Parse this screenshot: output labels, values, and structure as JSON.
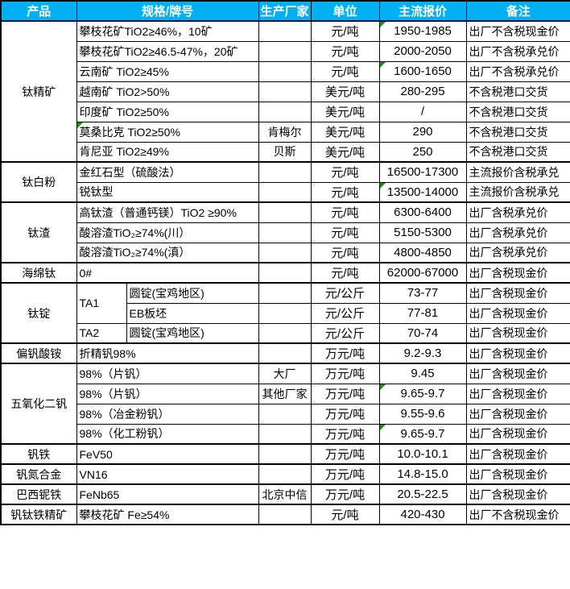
{
  "colors": {
    "header_bg": "#00B0F0",
    "header_text": "#FFFFFF",
    "grid": "#000000",
    "error_marker_green": "#1E8F1E"
  },
  "table": {
    "header": [
      "产品",
      "规格/牌号",
      "生产厂家",
      "单位",
      "主流报价",
      "备注"
    ],
    "rows": [
      {
        "thick": false,
        "cells": [
          {
            "n": "product",
            "t": "钛精矿",
            "rs": 7,
            "cls": "center"
          },
          {
            "n": "spec",
            "t": "攀枝花矿TiO2≥46%，10矿",
            "cs": 2,
            "cls": "left"
          },
          {
            "n": "maker",
            "t": "",
            "cls": "center"
          },
          {
            "n": "unit",
            "t": "元/吨",
            "cls": "center"
          },
          {
            "n": "price",
            "t": "1950-1985",
            "cls": "center",
            "m": true
          },
          {
            "n": "note",
            "t": "出厂不含税现金价",
            "cls": "left"
          }
        ]
      },
      {
        "thick": false,
        "cells": [
          {
            "n": "spec",
            "t": "攀枝花矿TiO2≥46.5-47%，20矿",
            "cs": 2,
            "cls": "left"
          },
          {
            "n": "maker",
            "t": "",
            "cls": "center"
          },
          {
            "n": "unit",
            "t": "元/吨",
            "cls": "center"
          },
          {
            "n": "price",
            "t": "2000-2050",
            "cls": "center"
          },
          {
            "n": "note",
            "t": "出厂不含税承兑价",
            "cls": "left"
          }
        ]
      },
      {
        "thick": false,
        "cells": [
          {
            "n": "spec",
            "t": "云南矿 TiO2≥45%",
            "cs": 2,
            "cls": "left"
          },
          {
            "n": "maker",
            "t": "",
            "cls": "center"
          },
          {
            "n": "unit",
            "t": "元/吨",
            "cls": "center"
          },
          {
            "n": "price",
            "t": "1600-1650",
            "cls": "center",
            "m": true
          },
          {
            "n": "note",
            "t": "出厂不含税承兑价",
            "cls": "left"
          }
        ]
      },
      {
        "thick": false,
        "cells": [
          {
            "n": "spec",
            "t": "越南矿 TiO2>50%",
            "cs": 2,
            "cls": "left"
          },
          {
            "n": "maker",
            "t": "",
            "cls": "center"
          },
          {
            "n": "unit",
            "t": "美元/吨",
            "cls": "center"
          },
          {
            "n": "price",
            "t": "280-295",
            "cls": "center"
          },
          {
            "n": "note",
            "t": "不含税港口交货",
            "cls": "left"
          }
        ]
      },
      {
        "thick": false,
        "cells": [
          {
            "n": "spec",
            "t": "印度矿 TiO2≥50%",
            "cs": 2,
            "cls": "left"
          },
          {
            "n": "maker",
            "t": "",
            "cls": "center"
          },
          {
            "n": "unit",
            "t": "美元/吨",
            "cls": "center"
          },
          {
            "n": "price",
            "t": "/",
            "cls": "center"
          },
          {
            "n": "note",
            "t": "不含税港口交货",
            "cls": "left"
          }
        ]
      },
      {
        "thick": false,
        "cells": [
          {
            "n": "spec",
            "t": "莫桑比克 TiO2≥50%",
            "cs": 2,
            "cls": "left",
            "m": true
          },
          {
            "n": "maker",
            "t": "肯梅尔",
            "cls": "center"
          },
          {
            "n": "unit",
            "t": "美元/吨",
            "cls": "center"
          },
          {
            "n": "price",
            "t": "290",
            "cls": "center"
          },
          {
            "n": "note",
            "t": "不含税港口交货",
            "cls": "left"
          }
        ]
      },
      {
        "thick": false,
        "cells": [
          {
            "n": "spec",
            "t": "肯尼亚 TiO2≥49%",
            "cs": 2,
            "cls": "left"
          },
          {
            "n": "maker",
            "t": "贝斯",
            "cls": "center"
          },
          {
            "n": "unit",
            "t": "美元/吨",
            "cls": "center"
          },
          {
            "n": "price",
            "t": "250",
            "cls": "center"
          },
          {
            "n": "note",
            "t": "不含税港口交货",
            "cls": "left"
          }
        ]
      },
      {
        "thick": true,
        "cells": [
          {
            "n": "product",
            "t": "钛白粉",
            "rs": 2,
            "cls": "center"
          },
          {
            "n": "spec",
            "t": "金红石型（硫酸法）",
            "cs": 2,
            "cls": "left"
          },
          {
            "n": "maker",
            "t": "",
            "cls": "center"
          },
          {
            "n": "unit",
            "t": "元/吨",
            "cls": "center"
          },
          {
            "n": "price",
            "t": "16500-17300",
            "cls": "center"
          },
          {
            "n": "note",
            "t": "主流报价含税承兑",
            "cls": "left"
          }
        ]
      },
      {
        "thick": false,
        "cells": [
          {
            "n": "spec",
            "t": "锐钛型",
            "cs": 2,
            "cls": "left"
          },
          {
            "n": "maker",
            "t": "",
            "cls": "center"
          },
          {
            "n": "unit",
            "t": "元/吨",
            "cls": "center"
          },
          {
            "n": "price",
            "t": "13500-14000",
            "cls": "center",
            "m": true
          },
          {
            "n": "note",
            "t": "主流报价含税承兑",
            "cls": "left"
          }
        ]
      },
      {
        "thick": true,
        "cells": [
          {
            "n": "product",
            "t": "钛渣",
            "rs": 3,
            "cls": "center"
          },
          {
            "n": "spec",
            "t": "高钛渣（普通钙镁）TiO2 ≥90%",
            "cs": 2,
            "cls": "left"
          },
          {
            "n": "maker",
            "t": "",
            "cls": "center"
          },
          {
            "n": "unit",
            "t": "元/吨",
            "cls": "center"
          },
          {
            "n": "price",
            "t": "6300-6400",
            "cls": "center"
          },
          {
            "n": "note",
            "t": "出厂含税承兑价",
            "cls": "left"
          }
        ]
      },
      {
        "thick": false,
        "cells": [
          {
            "n": "spec",
            "t": "酸溶渣TiO₂≥74%(川）",
            "cs": 2,
            "cls": "left"
          },
          {
            "n": "maker",
            "t": "",
            "cls": "center"
          },
          {
            "n": "unit",
            "t": "元/吨",
            "cls": "center"
          },
          {
            "n": "price",
            "t": "5150-5300",
            "cls": "center"
          },
          {
            "n": "note",
            "t": "出厂含税承兑价",
            "cls": "left"
          }
        ]
      },
      {
        "thick": false,
        "cells": [
          {
            "n": "spec",
            "t": "酸溶渣TiO₂≥74%(滇）",
            "cs": 2,
            "cls": "left"
          },
          {
            "n": "maker",
            "t": "",
            "cls": "center"
          },
          {
            "n": "unit",
            "t": "元/吨",
            "cls": "center"
          },
          {
            "n": "price",
            "t": "4800-4850",
            "cls": "center"
          },
          {
            "n": "note",
            "t": "出厂含税承兑价",
            "cls": "left"
          }
        ]
      },
      {
        "thick": true,
        "cells": [
          {
            "n": "product",
            "t": "海绵钛",
            "cls": "center"
          },
          {
            "n": "spec",
            "t": "0#",
            "cs": 2,
            "cls": "left"
          },
          {
            "n": "maker",
            "t": "",
            "cls": "center"
          },
          {
            "n": "unit",
            "t": "元/吨",
            "cls": "center"
          },
          {
            "n": "price",
            "t": "62000-67000",
            "cls": "center"
          },
          {
            "n": "note",
            "t": "出厂含税现金价",
            "cls": "left"
          }
        ]
      },
      {
        "thick": true,
        "cells": [
          {
            "n": "product",
            "t": "钛锭",
            "rs": 3,
            "cls": "center"
          },
          {
            "n": "grade",
            "t": "TA1",
            "rs": 2,
            "cls": "left"
          },
          {
            "n": "spec",
            "t": "圆锭(宝鸡地区)",
            "cls": "left"
          },
          {
            "n": "maker",
            "t": "",
            "cls": "center"
          },
          {
            "n": "unit",
            "t": "元/公斤",
            "cls": "center"
          },
          {
            "n": "price",
            "t": "73-77",
            "cls": "center"
          },
          {
            "n": "note",
            "t": "出厂含税现金价",
            "cls": "left"
          }
        ]
      },
      {
        "thick": false,
        "cells": [
          {
            "n": "spec",
            "t": "EB板坯",
            "cls": "left"
          },
          {
            "n": "maker",
            "t": "",
            "cls": "center"
          },
          {
            "n": "unit",
            "t": "元/公斤",
            "cls": "center"
          },
          {
            "n": "price",
            "t": "77-81",
            "cls": "center"
          },
          {
            "n": "note",
            "t": "出厂含税现金价",
            "cls": "left"
          }
        ]
      },
      {
        "thick": false,
        "cells": [
          {
            "n": "grade",
            "t": "TA2",
            "cls": "left"
          },
          {
            "n": "spec",
            "t": "圆锭(宝鸡地区)",
            "cls": "left"
          },
          {
            "n": "maker",
            "t": "",
            "cls": "center"
          },
          {
            "n": "unit",
            "t": "元/公斤",
            "cls": "center"
          },
          {
            "n": "price",
            "t": "70-74",
            "cls": "center"
          },
          {
            "n": "note",
            "t": "出厂含税现金价",
            "cls": "left"
          }
        ]
      },
      {
        "thick": true,
        "cells": [
          {
            "n": "product",
            "t": "偏钒酸铵",
            "cls": "center"
          },
          {
            "n": "spec",
            "t": "折精钒98%",
            "cs": 2,
            "cls": "left"
          },
          {
            "n": "maker",
            "t": "",
            "cls": "center"
          },
          {
            "n": "unit",
            "t": "万元/吨",
            "cls": "center"
          },
          {
            "n": "price",
            "t": "9.2-9.3",
            "cls": "center"
          },
          {
            "n": "note",
            "t": "出厂含税现金价",
            "cls": "left"
          }
        ]
      },
      {
        "thick": true,
        "cells": [
          {
            "n": "product",
            "t": "五氧化二钒",
            "rs": 4,
            "cls": "center"
          },
          {
            "n": "spec",
            "t": "98%（片钒）",
            "cs": 2,
            "cls": "left"
          },
          {
            "n": "maker",
            "t": "大厂",
            "cls": "center"
          },
          {
            "n": "unit",
            "t": "万元/吨",
            "cls": "center"
          },
          {
            "n": "price",
            "t": "9.45",
            "cls": "center"
          },
          {
            "n": "note",
            "t": "出厂含税现金价",
            "cls": "left"
          }
        ]
      },
      {
        "thick": false,
        "cells": [
          {
            "n": "spec",
            "t": "98%（片钒）",
            "cs": 2,
            "cls": "left"
          },
          {
            "n": "maker",
            "t": "其他厂家",
            "cls": "center"
          },
          {
            "n": "unit",
            "t": "万元/吨",
            "cls": "center"
          },
          {
            "n": "price",
            "t": "9.65-9.7",
            "cls": "center",
            "m": true
          },
          {
            "n": "note",
            "t": "出厂含税现金价",
            "cls": "left"
          }
        ]
      },
      {
        "thick": false,
        "cells": [
          {
            "n": "spec",
            "t": "98%（冶金粉钒）",
            "cs": 2,
            "cls": "left"
          },
          {
            "n": "maker",
            "t": "",
            "cls": "center"
          },
          {
            "n": "unit",
            "t": "万元/吨",
            "cls": "center"
          },
          {
            "n": "price",
            "t": "9.55-9.6",
            "cls": "center"
          },
          {
            "n": "note",
            "t": "出厂含税现金价",
            "cls": "left"
          }
        ]
      },
      {
        "thick": false,
        "cells": [
          {
            "n": "spec",
            "t": "98%（化工粉钒）",
            "cs": 2,
            "cls": "left"
          },
          {
            "n": "maker",
            "t": "",
            "cls": "center"
          },
          {
            "n": "unit",
            "t": "万元/吨",
            "cls": "center"
          },
          {
            "n": "price",
            "t": "9.65-9.7",
            "cls": "center",
            "m": true
          },
          {
            "n": "note",
            "t": "出厂含税现金价",
            "cls": "left"
          }
        ]
      },
      {
        "thick": true,
        "cells": [
          {
            "n": "product",
            "t": "钒铁",
            "cls": "center"
          },
          {
            "n": "spec",
            "t": "FeV50",
            "cs": 2,
            "cls": "left"
          },
          {
            "n": "maker",
            "t": "",
            "cls": "center"
          },
          {
            "n": "unit",
            "t": "万元/吨",
            "cls": "center"
          },
          {
            "n": "price",
            "t": "10.0-10.1",
            "cls": "center"
          },
          {
            "n": "note",
            "t": "出厂含税现金价",
            "cls": "left"
          }
        ]
      },
      {
        "thick": true,
        "cells": [
          {
            "n": "product",
            "t": "钒氮合金",
            "cls": "center"
          },
          {
            "n": "spec",
            "t": "VN16",
            "cs": 2,
            "cls": "left"
          },
          {
            "n": "maker",
            "t": "",
            "cls": "center"
          },
          {
            "n": "unit",
            "t": "万元/吨",
            "cls": "center"
          },
          {
            "n": "price",
            "t": "14.8-15.0",
            "cls": "center"
          },
          {
            "n": "note",
            "t": "出厂含税现金价",
            "cls": "left"
          }
        ]
      },
      {
        "thick": true,
        "cells": [
          {
            "n": "product",
            "t": "巴西铌铁",
            "cls": "center"
          },
          {
            "n": "spec",
            "t": "FeNb65",
            "cs": 2,
            "cls": "left"
          },
          {
            "n": "maker",
            "t": "北京中信",
            "cls": "center"
          },
          {
            "n": "unit",
            "t": "万元/吨",
            "cls": "center"
          },
          {
            "n": "price",
            "t": "20.5-22.5",
            "cls": "center"
          },
          {
            "n": "note",
            "t": "出厂含税现金价",
            "cls": "left"
          }
        ]
      },
      {
        "thick": true,
        "cells": [
          {
            "n": "product",
            "t": "钒钛铁精矿",
            "cls": "center"
          },
          {
            "n": "spec",
            "t": "攀枝花矿 Fe≥54%",
            "cs": 2,
            "cls": "left"
          },
          {
            "n": "maker",
            "t": "",
            "cls": "center"
          },
          {
            "n": "unit",
            "t": "元/吨",
            "cls": "center"
          },
          {
            "n": "price",
            "t": "420-430",
            "cls": "center"
          },
          {
            "n": "note",
            "t": "出厂不含税现金价",
            "cls": "left"
          }
        ]
      }
    ]
  }
}
